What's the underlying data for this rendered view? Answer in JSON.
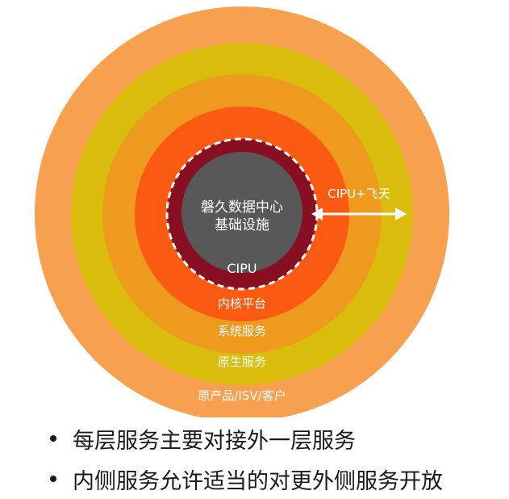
{
  "diagram": {
    "rings": [
      {
        "label": "原产品/ISV/客户",
        "color": "#F7A050",
        "text_color": "#ffffff"
      },
      {
        "label": "原生服务",
        "color": "#D9BC0C",
        "text_color": "#ffffff"
      },
      {
        "label": "系统服务",
        "color": "#EE9A1E",
        "text_color": "#ffffff"
      },
      {
        "label": "内核平台",
        "color": "#FA5A12",
        "text_color": "#ffffff"
      },
      {
        "label": "CIPU",
        "color": "#880E22",
        "text_color": "#ffffff"
      }
    ],
    "core": {
      "line1": "磐久数据中心",
      "line2": "基础设施",
      "color": "#585858"
    },
    "arrow_label": "CIPU+飞天"
  },
  "bullets": [
    "每层服务主要对接外一层服务",
    "内侧服务允许适当的对更外侧服务开放"
  ]
}
